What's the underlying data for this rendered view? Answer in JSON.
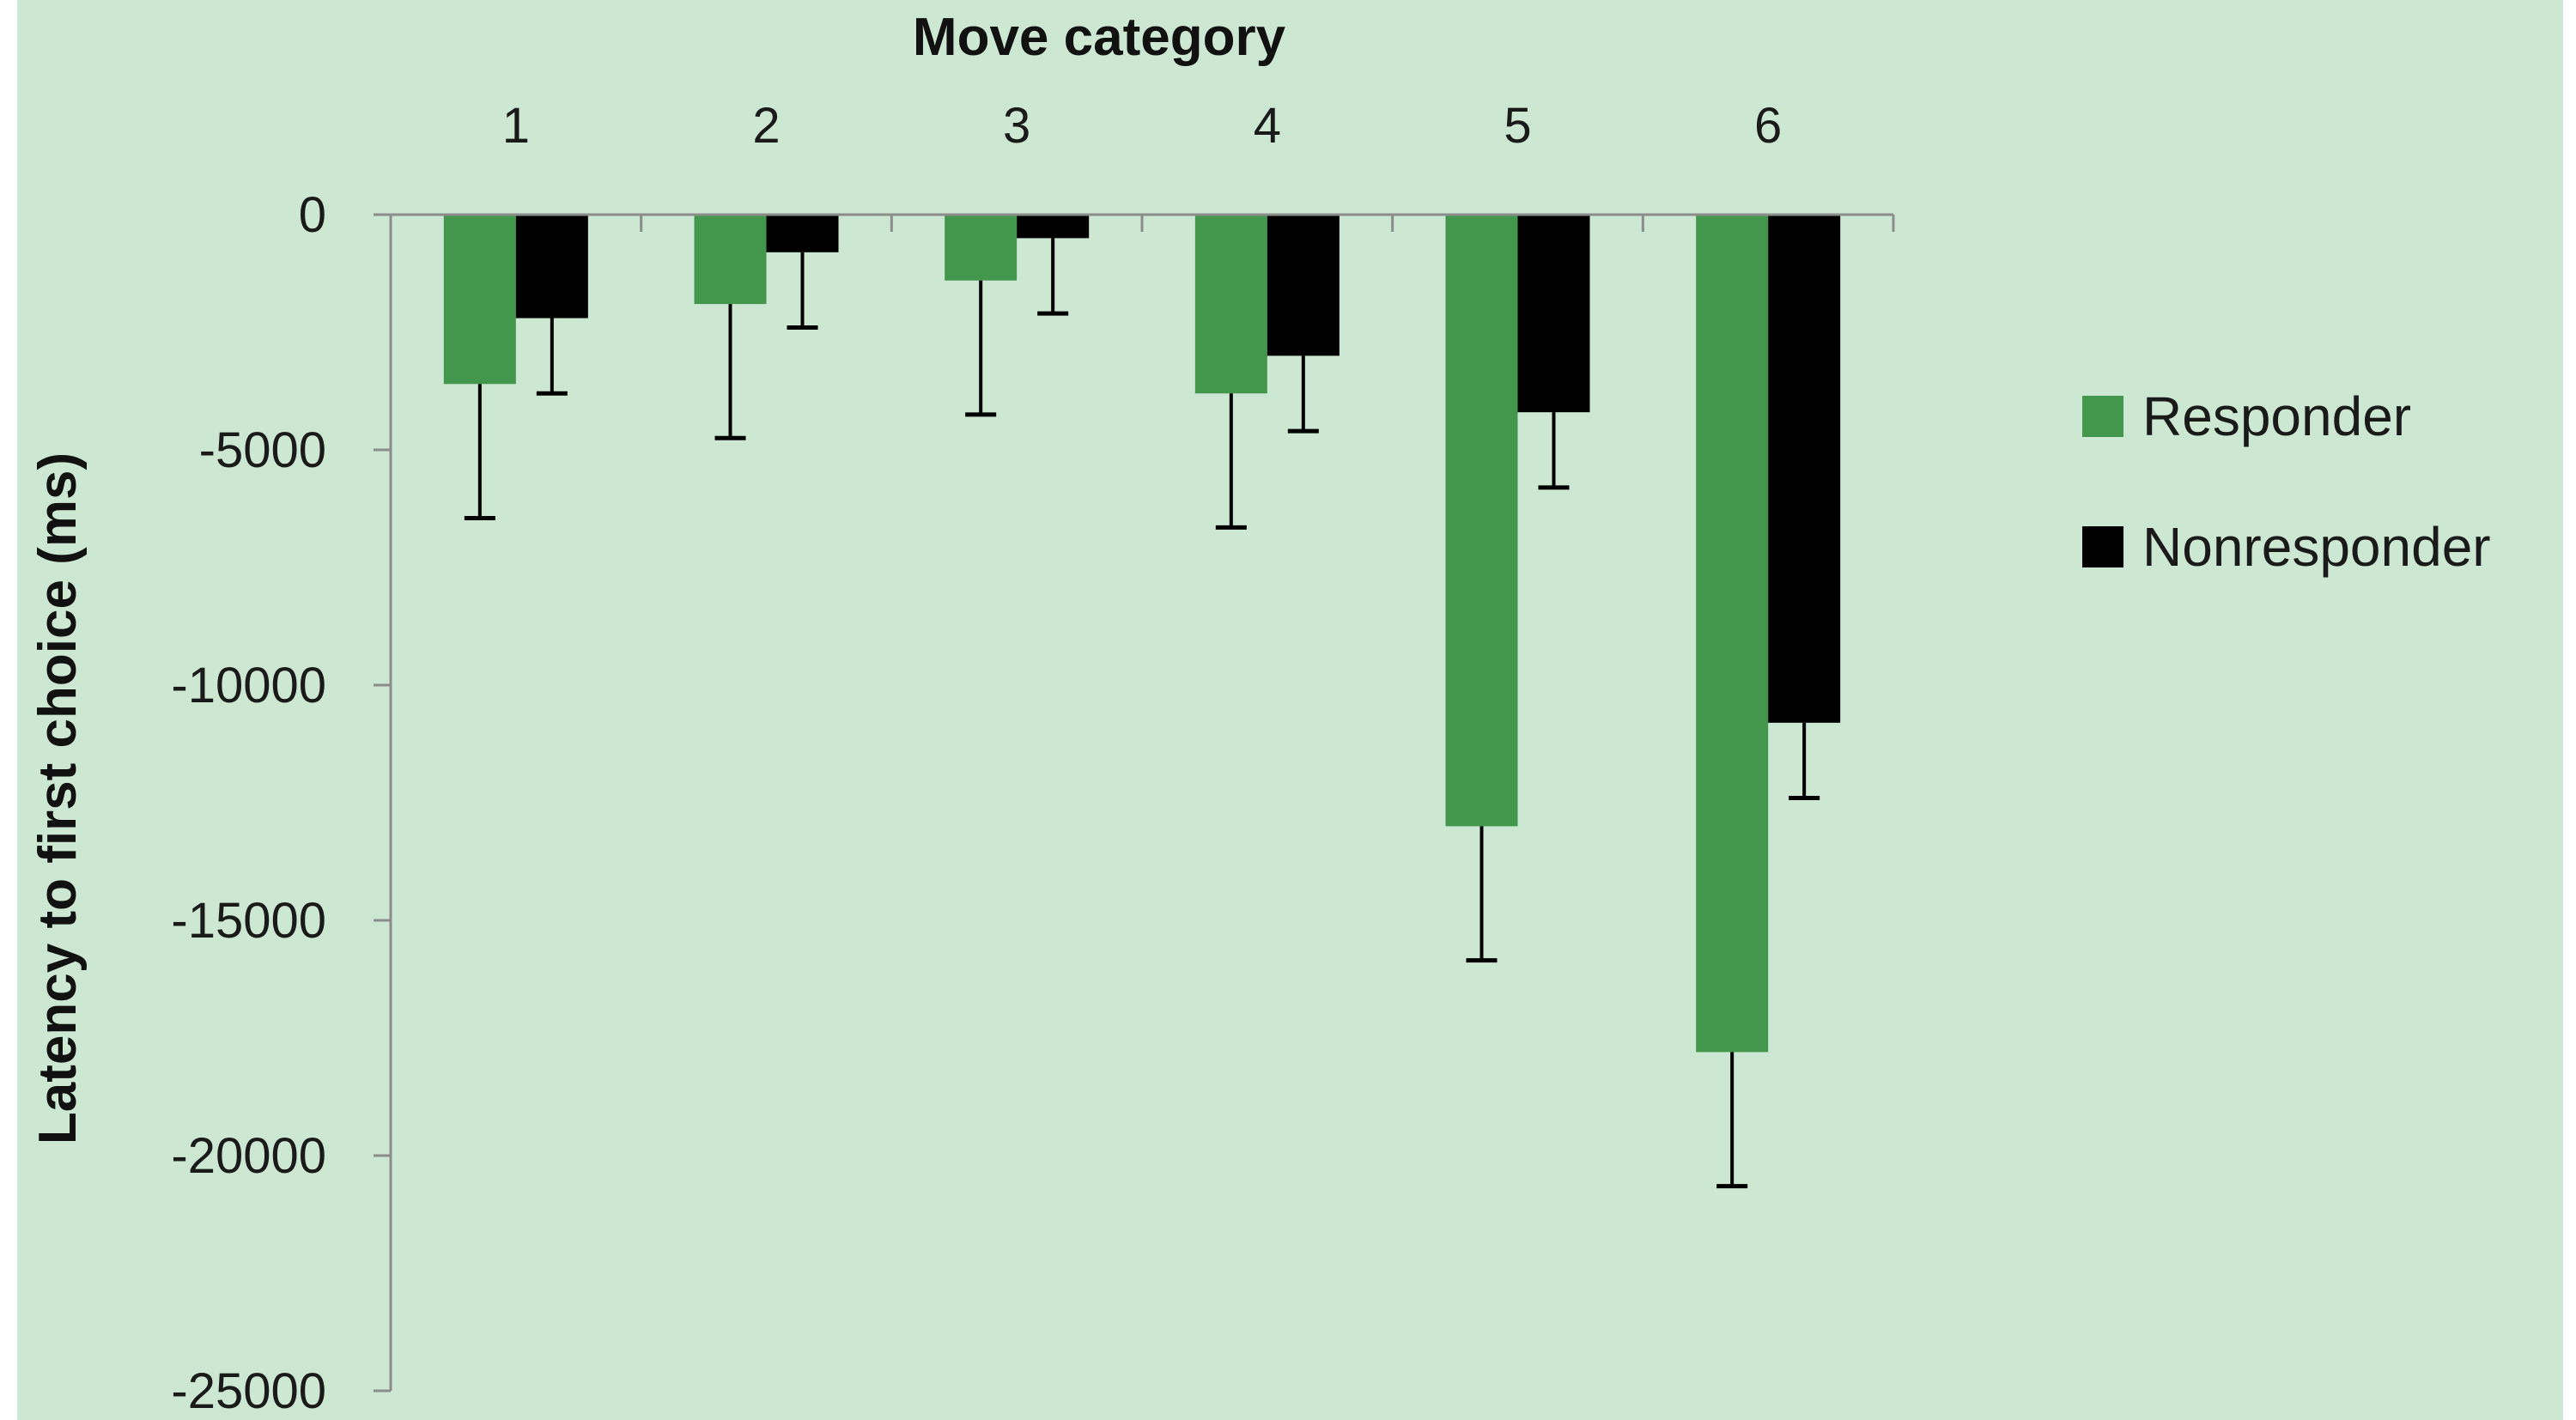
{
  "chart_data": {
    "type": "bar",
    "xlabel": "Move category",
    "ylabel": "Latency to first choice (ms)",
    "categories": [
      "1",
      "2",
      "3",
      "4",
      "5",
      "6"
    ],
    "ylim": [
      -25000,
      0
    ],
    "yticks": [
      0,
      -5000,
      -10000,
      -15000,
      -20000,
      -25000
    ],
    "ytick_labels": [
      "0",
      "-5000",
      "-10000",
      "-15000",
      "-20000",
      "-25000"
    ],
    "x_axis_position": "top",
    "grid": false,
    "legend_position": "right",
    "series": [
      {
        "name": "Responder",
        "color": "#43974d",
        "values": [
          -3600,
          -1900,
          -1400,
          -3800,
          -13000,
          -17800
        ],
        "errors": [
          2850,
          2850,
          2850,
          2850,
          2850,
          2850
        ]
      },
      {
        "name": "Nonresponder",
        "color": "#000000",
        "values": [
          -2200,
          -800,
          -500,
          -3000,
          -4200,
          -10800
        ],
        "errors": [
          1600,
          1600,
          1600,
          1600,
          1600,
          1600
        ]
      }
    ]
  },
  "colors": {
    "background": "#cde8d2",
    "axis": "#8c8c8c"
  }
}
